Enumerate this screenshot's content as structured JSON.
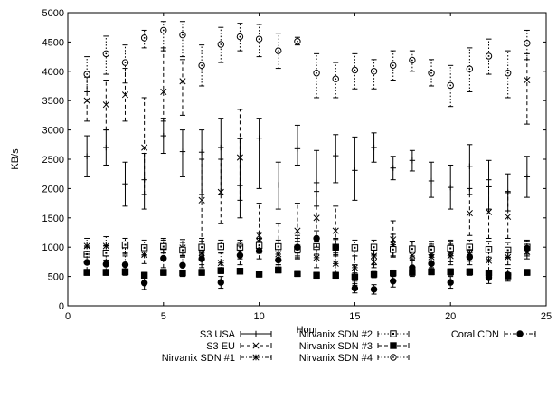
{
  "chart_data": {
    "type": "line",
    "title": "",
    "xlabel": "Hour",
    "ylabel": "KB/s",
    "xlim": [
      0,
      25
    ],
    "ylim": [
      0,
      5000
    ],
    "xticks": [
      0,
      5,
      10,
      15,
      20,
      25
    ],
    "yticks": [
      0,
      500,
      1000,
      1500,
      2000,
      2500,
      3000,
      3500,
      4000,
      4500,
      5000
    ],
    "grid": false,
    "legend_position": "bottom",
    "series": [
      {
        "name": "S3 USA",
        "dash": "solid",
        "marker": "plus",
        "x": [
          1,
          2,
          3,
          4,
          5,
          6,
          7,
          8,
          9,
          10,
          11,
          12,
          13,
          14,
          15,
          16,
          17,
          18,
          19,
          20,
          21,
          22,
          23,
          24
        ],
        "y": [
          2550,
          2700,
          2080,
          2150,
          2900,
          2630,
          2620,
          2700,
          2050,
          2860,
          2060,
          2680,
          2100,
          2560,
          2310,
          2700,
          2350,
          2480,
          2130,
          2020,
          2380,
          2030,
          1930,
          2200
        ],
        "ylow": [
          2200,
          2400,
          1700,
          1650,
          2600,
          2200,
          1900,
          1900,
          1500,
          2000,
          1650,
          2400,
          1700,
          2100,
          1800,
          2450,
          2150,
          2300,
          1850,
          1650,
          1900,
          1650,
          1620,
          1850
        ],
        "yhigh": [
          2900,
          3000,
          2450,
          2600,
          3200,
          3000,
          3000,
          3200,
          2850,
          3200,
          2450,
          3080,
          2650,
          2920,
          2880,
          2950,
          2550,
          2650,
          2450,
          2400,
          2750,
          2480,
          2250,
          2550
        ]
      },
      {
        "name": "S3 EU",
        "dash": "dash",
        "marker": "x",
        "x": [
          1,
          2,
          3,
          4,
          5,
          6,
          7,
          8,
          9,
          10,
          11,
          12,
          13,
          14,
          15,
          16,
          17,
          18,
          19,
          20,
          21,
          22,
          23,
          24
        ],
        "y": [
          3500,
          3430,
          3600,
          2700,
          3650,
          3830,
          1800,
          1940,
          2530,
          1200,
          1000,
          1280,
          1500,
          1280,
          480,
          750,
          1130,
          860,
          830,
          850,
          1580,
          1600,
          1520,
          3850
        ],
        "ylow": [
          3150,
          3000,
          3150,
          1900,
          3150,
          3250,
          850,
          1400,
          1800,
          900,
          700,
          900,
          1100,
          950,
          350,
          650,
          850,
          600,
          650,
          700,
          1200,
          1150,
          1150,
          3100
        ],
        "yhigh": [
          3900,
          3850,
          4050,
          3550,
          4400,
          4200,
          2500,
          2500,
          3350,
          1750,
          1400,
          1750,
          1950,
          1700,
          700,
          950,
          1450,
          1100,
          1050,
          1100,
          2000,
          2150,
          1950,
          4300
        ]
      },
      {
        "name": "Nirvanix SDN #1",
        "dash": "dashdot",
        "marker": "star",
        "x": [
          1,
          2,
          3,
          4,
          5,
          6,
          7,
          8,
          9,
          10,
          11,
          12,
          13,
          14,
          15,
          16,
          17,
          18,
          19,
          20,
          21,
          22,
          23,
          24
        ],
        "y": [
          1020,
          1020,
          1020,
          870,
          1020,
          990,
          900,
          730,
          920,
          1100,
          880,
          990,
          820,
          720,
          650,
          850,
          1040,
          940,
          870,
          900,
          900,
          770,
          830,
          920
        ],
        "ylow": [
          880,
          880,
          880,
          720,
          900,
          860,
          700,
          600,
          800,
          900,
          700,
          800,
          650,
          550,
          500,
          700,
          850,
          780,
          720,
          750,
          760,
          600,
          700,
          800
        ],
        "yhigh": [
          1150,
          1180,
          1150,
          1020,
          1150,
          1130,
          1150,
          900,
          1080,
          1250,
          1050,
          1200,
          1000,
          900,
          850,
          1000,
          1220,
          1100,
          1020,
          1050,
          1050,
          950,
          980,
          1050
        ]
      },
      {
        "name": "Nirvanix SDN #2",
        "dash": "dotted",
        "marker": "square",
        "x": [
          1,
          2,
          3,
          4,
          5,
          6,
          7,
          8,
          9,
          10,
          11,
          12,
          13,
          14,
          15,
          16,
          17,
          18,
          19,
          20,
          21,
          22,
          23,
          24
        ],
        "y": [
          880,
          900,
          1040,
          990,
          1010,
          950,
          1000,
          1010,
          1000,
          1030,
          1010,
          960,
          1010,
          1000,
          990,
          1000,
          960,
          970,
          960,
          980,
          1000,
          960,
          950,
          1000
        ],
        "ylow": [
          750,
          780,
          900,
          850,
          900,
          850,
          880,
          900,
          880,
          900,
          880,
          820,
          880,
          870,
          850,
          870,
          830,
          850,
          830,
          850,
          870,
          830,
          820,
          880
        ],
        "yhigh": [
          1000,
          1030,
          1150,
          1120,
          1120,
          1080,
          1100,
          1120,
          1120,
          1150,
          1120,
          1100,
          1150,
          1130,
          1120,
          1120,
          1100,
          1100,
          1100,
          1120,
          1120,
          1100,
          1080,
          1120
        ]
      },
      {
        "name": "Nirvanix SDN #3",
        "dash": "dash",
        "marker": "filled-square",
        "x": [
          1,
          2,
          3,
          4,
          5,
          6,
          7,
          8,
          9,
          10,
          11,
          12,
          13,
          14,
          15,
          16,
          17,
          18,
          19,
          20,
          21,
          22,
          23,
          24
        ],
        "y": [
          570,
          570,
          580,
          520,
          570,
          560,
          570,
          600,
          590,
          540,
          610,
          550,
          520,
          520,
          490,
          540,
          560,
          570,
          580,
          580,
          580,
          560,
          510,
          570
        ],
        "ylow": [
          520,
          520,
          520,
          470,
          520,
          500,
          520,
          550,
          540,
          490,
          560,
          500,
          470,
          470,
          420,
          480,
          500,
          520,
          530,
          520,
          520,
          510,
          460,
          520
        ],
        "yhigh": [
          620,
          620,
          630,
          570,
          620,
          610,
          620,
          650,
          640,
          590,
          660,
          600,
          570,
          570,
          560,
          600,
          610,
          620,
          630,
          630,
          630,
          610,
          560,
          620
        ]
      },
      {
        "name": "Nirvanix SDN #4",
        "dash": "dotted",
        "marker": "circle",
        "x": [
          1,
          2,
          3,
          4,
          5,
          6,
          7,
          8,
          9,
          10,
          11,
          12,
          13,
          14,
          15,
          16,
          17,
          18,
          19,
          20,
          21,
          22,
          23,
          24
        ],
        "y": [
          3950,
          4300,
          4150,
          4570,
          4700,
          4620,
          4100,
          4460,
          4590,
          4550,
          4350,
          4510,
          3970,
          3870,
          4020,
          4000,
          4100,
          4190,
          3970,
          3760,
          4040,
          4260,
          3970,
          4480
        ],
        "ylow": [
          3650,
          3950,
          3800,
          4400,
          4350,
          4250,
          3750,
          4150,
          4350,
          4250,
          4050,
          4450,
          3550,
          3550,
          3700,
          3700,
          3850,
          4000,
          3750,
          3400,
          3650,
          3950,
          3550,
          4200
        ],
        "yhigh": [
          4250,
          4600,
          4450,
          4700,
          4850,
          4850,
          4450,
          4750,
          4820,
          4800,
          4650,
          4580,
          4300,
          4150,
          4300,
          4200,
          4350,
          4350,
          4200,
          4100,
          4400,
          4550,
          4350,
          4700
        ]
      },
      {
        "name": "Coral CDN",
        "dash": "dashdot",
        "marker": "filled-circle",
        "x": [
          1,
          2,
          3,
          4,
          5,
          6,
          7,
          8,
          9,
          10,
          11,
          12,
          13,
          14,
          15,
          16,
          17,
          18,
          19,
          20,
          21,
          22,
          23,
          24
        ],
        "y": [
          740,
          710,
          700,
          390,
          810,
          690,
          800,
          400,
          860,
          940,
          780,
          1000,
          1150,
          1000,
          300,
          280,
          420,
          650,
          720,
          400,
          830,
          480,
          530,
          980
        ],
        "ylow": [
          600,
          580,
          550,
          280,
          650,
          550,
          650,
          300,
          700,
          800,
          650,
          850,
          1000,
          850,
          220,
          200,
          320,
          500,
          580,
          300,
          700,
          380,
          420,
          850
        ],
        "yhigh": [
          880,
          850,
          850,
          500,
          970,
          830,
          950,
          500,
          1020,
          1080,
          920,
          1150,
          1280,
          1150,
          380,
          360,
          520,
          800,
          860,
          500,
          960,
          580,
          640,
          1100
        ]
      }
    ]
  }
}
